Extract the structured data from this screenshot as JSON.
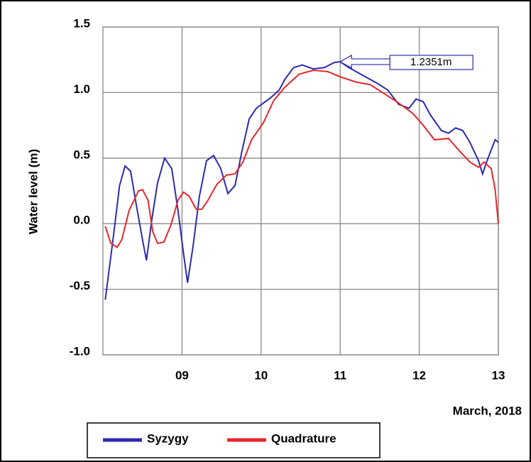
{
  "chart_data": {
    "type": "line",
    "y_label": "Water level  (m)",
    "x_label": "March, 2018",
    "xlim": [
      8,
      13
    ],
    "xticks": [
      {
        "value": 9,
        "label": "09"
      },
      10,
      11,
      12,
      13
    ],
    "ylim": [
      -1,
      1.5
    ],
    "yticks": [
      {
        "value": -1,
        "label": "-1.0"
      },
      -0.5,
      {
        "value": 0,
        "label": "0.0"
      },
      0.5,
      {
        "value": 1,
        "label": "1.0"
      },
      1.5
    ],
    "grid": true,
    "legend": "bottom",
    "series": [
      {
        "name": "Syzygy",
        "color": "#2b2bb0",
        "x": [
          8.03,
          8.14,
          8.21,
          8.28,
          8.35,
          8.42,
          8.5,
          8.55,
          8.62,
          8.69,
          8.78,
          8.87,
          8.95,
          9.02,
          9.07,
          9.14,
          9.22,
          9.31,
          9.4,
          9.49,
          9.58,
          9.67,
          9.76,
          9.85,
          9.94,
          10.12,
          10.23,
          10.3,
          10.41,
          10.52,
          10.66,
          10.8,
          10.93,
          11,
          11.11,
          11.29,
          11.47,
          11.6,
          11.74,
          11.87,
          11.96,
          12.05,
          12.14,
          12.28,
          12.37,
          12.46,
          12.55,
          12.64,
          12.75,
          12.8,
          12.87,
          12.96,
          13
        ],
        "values": [
          -0.58,
          -0.06,
          0.29,
          0.44,
          0.4,
          0.15,
          -0.12,
          -0.28,
          0.04,
          0.31,
          0.5,
          0.42,
          0.1,
          -0.23,
          -0.45,
          -0.17,
          0.21,
          0.48,
          0.52,
          0.42,
          0.23,
          0.29,
          0.56,
          0.8,
          0.88,
          0.96,
          1.02,
          1.1,
          1.19,
          1.21,
          1.18,
          1.19,
          1.23,
          1.2351,
          1.19,
          1.13,
          1.07,
          1.02,
          0.91,
          0.88,
          0.95,
          0.93,
          0.83,
          0.71,
          0.69,
          0.73,
          0.71,
          0.62,
          0.48,
          0.38,
          0.5,
          0.64,
          0.62
        ]
      },
      {
        "name": "Quadrature",
        "color": "#e8262b",
        "x": [
          8.03,
          8.1,
          8.18,
          8.24,
          8.33,
          8.45,
          8.5,
          8.57,
          8.63,
          8.69,
          8.77,
          8.86,
          8.95,
          9.02,
          9.09,
          9.18,
          9.25,
          9.32,
          9.44,
          9.56,
          9.67,
          9.77,
          9.88,
          10.03,
          10.16,
          10.3,
          10.48,
          10.66,
          10.84,
          11,
          11.2,
          11.38,
          11.56,
          11.74,
          11.92,
          12.05,
          12.19,
          12.37,
          12.5,
          12.64,
          12.75,
          12.82,
          12.91,
          12.96,
          13
        ],
        "values": [
          -0.02,
          -0.15,
          -0.18,
          -0.12,
          0.1,
          0.25,
          0.26,
          0.18,
          -0.06,
          -0.15,
          -0.14,
          -0.01,
          0.18,
          0.24,
          0.21,
          0.11,
          0.11,
          0.17,
          0.3,
          0.37,
          0.38,
          0.47,
          0.64,
          0.77,
          0.94,
          1.04,
          1.14,
          1.17,
          1.16,
          1.12,
          1.08,
          1.06,
          0.99,
          0.92,
          0.84,
          0.75,
          0.64,
          0.65,
          0.56,
          0.47,
          0.43,
          0.47,
          0.42,
          0.26,
          0
        ]
      }
    ],
    "annotations": [
      {
        "text": "1.2351m",
        "x": 11,
        "y": 1.2351
      }
    ]
  }
}
